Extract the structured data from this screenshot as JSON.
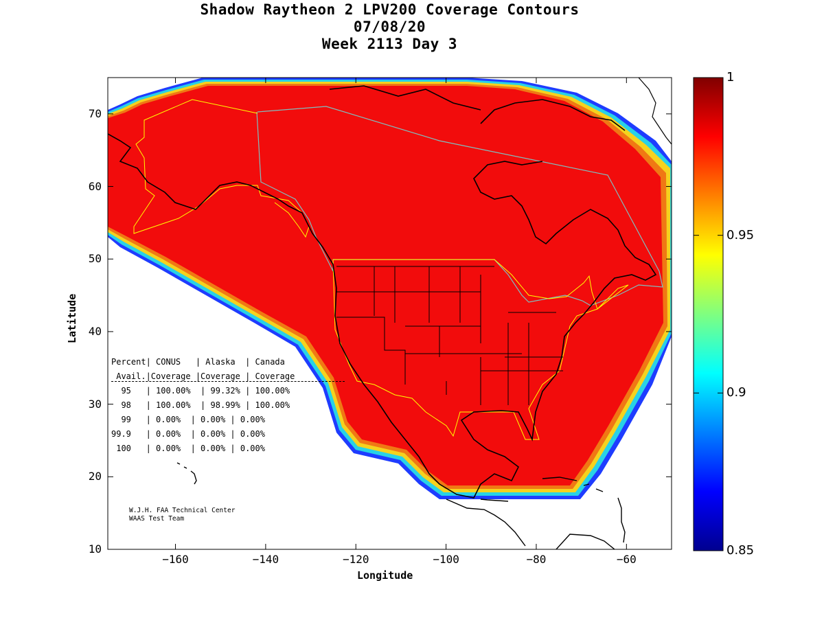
{
  "title": {
    "line1": "Shadow Raytheon 2 LPV200 Coverage Contours",
    "line2": "07/08/20",
    "line3": "Week 2113 Day 3"
  },
  "chart_data": {
    "type": "heatmap",
    "xlabel": "Longitude",
    "ylabel": "Latitude",
    "xlim": [
      -175,
      -50
    ],
    "ylim": [
      10,
      75
    ],
    "x_ticks": [
      -160,
      -140,
      -120,
      -100,
      -80,
      -60
    ],
    "y_ticks": [
      10,
      20,
      30,
      40,
      50,
      60,
      70
    ],
    "colorbar": {
      "min": 0.85,
      "max": 1,
      "ticks": [
        "1",
        "0.95",
        "0.9",
        "0.85"
      ]
    },
    "coverage_region_value": 1.0
  },
  "stats_table": {
    "header1": "Percent| CONUS   | Alaska  | Canada",
    "header2": " Avail.|Coverage |Coverage | Coverage",
    "rule": "----------------------------------------",
    "rows": [
      "  95   | 100.00%  | 99.32% | 100.00%",
      "  98   | 100.00%  | 98.99% | 100.00%",
      "  99   | 0.00%  | 0.00% | 0.00%",
      "99.9   | 0.00%  | 0.00% | 0.00%",
      " 100   | 0.00%  | 0.00% | 0.00%"
    ]
  },
  "credit": {
    "line1": "W.J.H. FAA Technical Center",
    "line2": "WAAS Test Team"
  },
  "colors": {
    "coverage": "#f20c0c",
    "frame": "#000000",
    "conus_boundary": "#ffff00",
    "region_boundary": "#7ec0c0"
  }
}
